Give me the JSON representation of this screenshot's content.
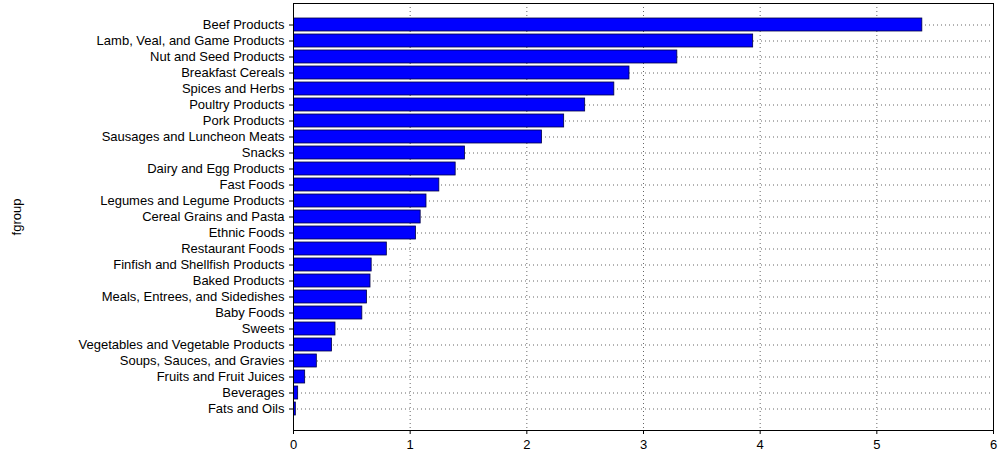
{
  "chart_data": {
    "type": "bar",
    "orientation": "horizontal",
    "y_label": "fgroup",
    "categories": [
      "Beef Products",
      "Lamb, Veal, and Game Products",
      "Nut and Seed Products",
      "Breakfast Cereals",
      "Spices and Herbs",
      "Poultry Products",
      "Pork Products",
      "Sausages and Luncheon Meats",
      "Snacks",
      "Dairy and Egg Products",
      "Fast Foods",
      "Legumes and Legume Products",
      "Cereal Grains and Pasta",
      "Ethnic Foods",
      "Restaurant Foods",
      "Finfish and Shellfish Products",
      "Baked Products",
      "Meals, Entrees, and Sidedishes",
      "Baby Foods",
      "Sweets",
      "Vegetables and Vegetable Products",
      "Soups, Sauces, and Gravies",
      "Fruits and Fruit Juices",
      "Beverages",
      "Fats and Oils"
    ],
    "values": [
      5.39,
      3.94,
      3.29,
      2.88,
      2.75,
      2.5,
      2.32,
      2.13,
      1.47,
      1.39,
      1.25,
      1.14,
      1.09,
      1.05,
      0.8,
      0.67,
      0.66,
      0.63,
      0.59,
      0.36,
      0.33,
      0.2,
      0.1,
      0.04,
      0.02
    ],
    "color": "#0000ff",
    "xlim": [
      0,
      6
    ],
    "xticks": [
      0,
      1,
      2,
      3,
      4,
      5,
      6
    ],
    "grid": true
  }
}
